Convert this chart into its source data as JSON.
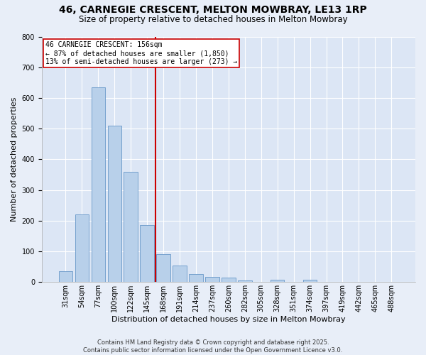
{
  "title": "46, CARNEGIE CRESCENT, MELTON MOWBRAY, LE13 1RP",
  "subtitle": "Size of property relative to detached houses in Melton Mowbray",
  "xlabel": "Distribution of detached houses by size in Melton Mowbray",
  "ylabel": "Number of detached properties",
  "categories": [
    "31sqm",
    "54sqm",
    "77sqm",
    "100sqm",
    "122sqm",
    "145sqm",
    "168sqm",
    "191sqm",
    "214sqm",
    "237sqm",
    "260sqm",
    "282sqm",
    "305sqm",
    "328sqm",
    "351sqm",
    "374sqm",
    "397sqm",
    "419sqm",
    "442sqm",
    "465sqm",
    "488sqm"
  ],
  "values": [
    35,
    220,
    635,
    510,
    360,
    185,
    90,
    55,
    25,
    18,
    15,
    5,
    1,
    8,
    1,
    8,
    1,
    0,
    0,
    0,
    0
  ],
  "bar_color": "#b8d0ea",
  "bar_edge_color": "#6898c8",
  "vline_x": 5.5,
  "vline_color": "#cc0000",
  "annotation_text": "46 CARNEGIE CRESCENT: 156sqm\n← 87% of detached houses are smaller (1,850)\n13% of semi-detached houses are larger (273) →",
  "annotation_box_color": "#ffffff",
  "annotation_box_edge": "#cc0000",
  "ylim": [
    0,
    800
  ],
  "yticks": [
    0,
    100,
    200,
    300,
    400,
    500,
    600,
    700,
    800
  ],
  "fig_background": "#e8eef8",
  "axes_background": "#dce6f5",
  "grid_color": "#ffffff",
  "footer": "Contains HM Land Registry data © Crown copyright and database right 2025.\nContains public sector information licensed under the Open Government Licence v3.0.",
  "title_fontsize": 10,
  "subtitle_fontsize": 8.5,
  "xlabel_fontsize": 8,
  "ylabel_fontsize": 8,
  "tick_fontsize": 7,
  "annotation_fontsize": 7,
  "footer_fontsize": 6
}
